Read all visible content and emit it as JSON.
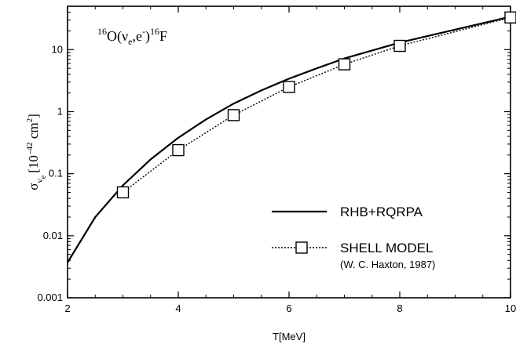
{
  "chart_data": {
    "type": "line",
    "xlabel": "T[MeV]",
    "xlim": [
      2,
      10
    ],
    "ylim": [
      0.001,
      50
    ],
    "yscale": "log",
    "x_ticks": [
      2,
      4,
      6,
      8,
      10
    ],
    "x_tick_labels": [
      "2",
      "4",
      "6",
      "8",
      "10"
    ],
    "y_ticks": [
      0.001,
      0.01,
      0.1,
      1,
      10
    ],
    "y_tick_labels": [
      "0.001",
      "0.01",
      "0.1",
      "1",
      "10"
    ],
    "ylabel": {
      "sigma": "σ",
      "sub": "ν",
      "subsub": "e",
      "bracket_open": "[10",
      "exp": "-42",
      "unit": " cm",
      "unit_exp": "2",
      "bracket_close": "]"
    },
    "reaction": {
      "pre_sup": "16",
      "o": "O(ν",
      "o_sub": "e",
      "mid": ",e",
      "mid_sup": "-",
      "close": ")",
      "f_sup": "16",
      "f": "F"
    },
    "grid": false,
    "legend_position": "bottom-right",
    "series": [
      {
        "name": "RHB+RQRPA",
        "style": "solid",
        "color": "#000000",
        "x": [
          2,
          2.5,
          3,
          3.5,
          4,
          4.5,
          5,
          5.5,
          6,
          6.5,
          7,
          8,
          9,
          10
        ],
        "y": [
          0.0037,
          0.02,
          0.065,
          0.17,
          0.38,
          0.75,
          1.35,
          2.2,
          3.4,
          5.0,
          7.2,
          13.0,
          21.0,
          34.0
        ]
      },
      {
        "name": "SHELL MODEL",
        "name_sub": "(W. C. Haxton, 1987)",
        "style": "dotted",
        "marker": "square",
        "color": "#000000",
        "x": [
          3,
          4,
          5,
          6,
          7,
          8,
          10
        ],
        "y": [
          0.05,
          0.24,
          0.88,
          2.5,
          5.8,
          11.5,
          33.0
        ]
      }
    ]
  }
}
